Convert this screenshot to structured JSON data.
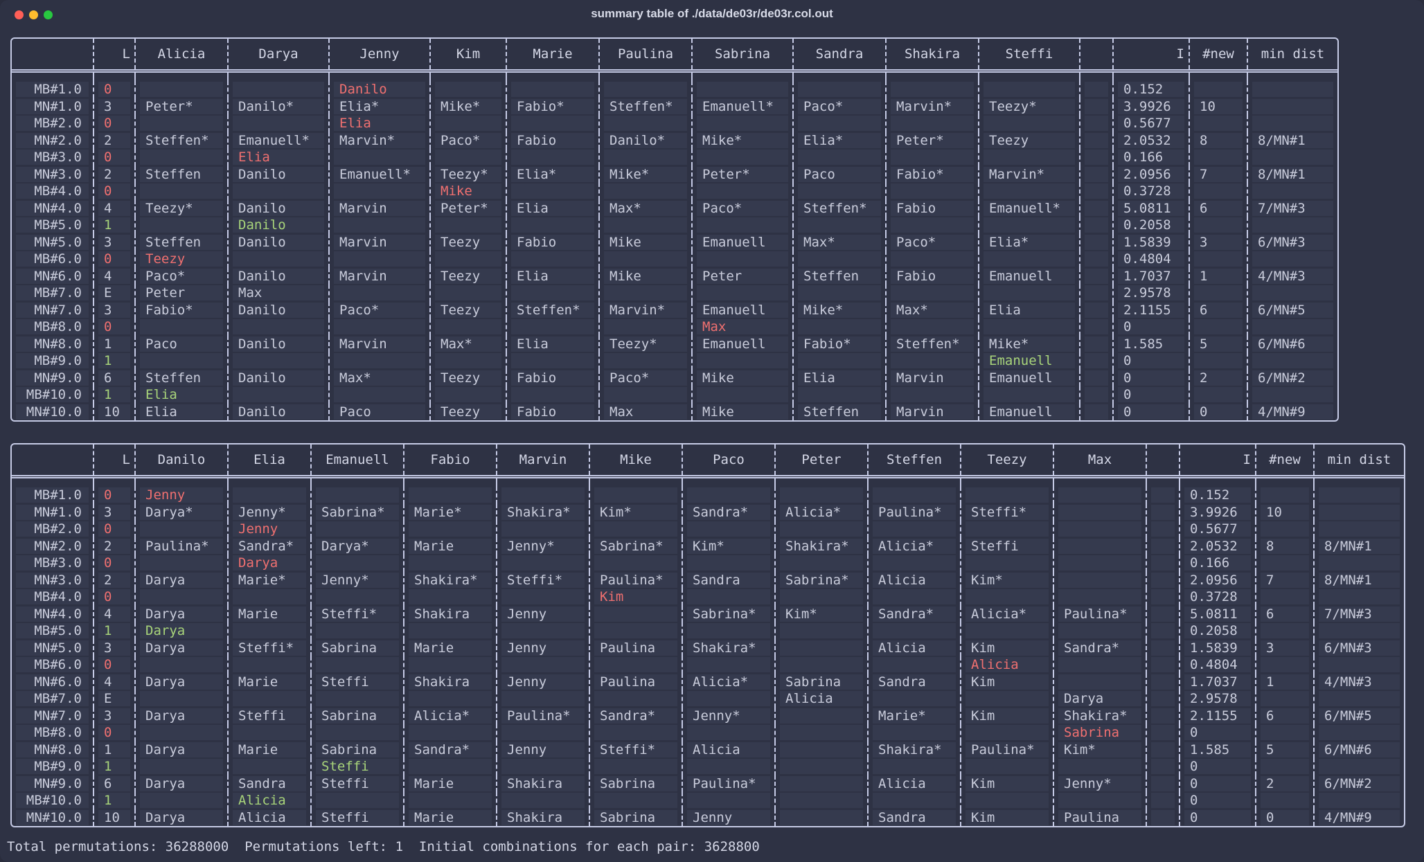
{
  "window": {
    "title": "summary table of ./data/de03r/de03r.col.out"
  },
  "table1": {
    "columns": [
      "",
      "L",
      "Alicia",
      "Darya",
      "Jenny",
      "Kim",
      "Marie",
      "Paulina",
      "Sabrina",
      "Sandra",
      "Shakira",
      "Steffi",
      "",
      "I",
      "#new",
      "min dist"
    ],
    "rows": [
      [
        "MB#1.0",
        "0",
        "",
        "",
        "Danilo",
        "",
        "",
        "",
        "",
        "",
        "",
        "",
        "",
        "0.152",
        "",
        ""
      ],
      [
        "MN#1.0",
        "3",
        "Peter*",
        "Danilo*",
        "Elia*",
        "Mike*",
        "Fabio*",
        "Steffen*",
        "Emanuell*",
        "Paco*",
        "Marvin*",
        "Teezy*",
        "",
        "3.9926",
        "10",
        ""
      ],
      [
        "MB#2.0",
        "0",
        "",
        "",
        "Elia",
        "",
        "",
        "",
        "",
        "",
        "",
        "",
        "",
        "0.5677",
        "",
        ""
      ],
      [
        "MN#2.0",
        "2",
        "Steffen*",
        "Emanuell*",
        "Marvin*",
        "Paco*",
        "Fabio",
        "Danilo*",
        "Mike*",
        "Elia*",
        "Peter*",
        "Teezy",
        "",
        "2.0532",
        "8",
        "8/MN#1"
      ],
      [
        "MB#3.0",
        "0",
        "",
        "Elia",
        "",
        "",
        "",
        "",
        "",
        "",
        "",
        "",
        "",
        "0.166",
        "",
        ""
      ],
      [
        "MN#3.0",
        "2",
        "Steffen",
        "Danilo",
        "Emanuell*",
        "Teezy*",
        "Elia*",
        "Mike*",
        "Peter*",
        "Paco",
        "Fabio*",
        "Marvin*",
        "",
        "2.0956",
        "7",
        "8/MN#1"
      ],
      [
        "MB#4.0",
        "0",
        "",
        "",
        "",
        "Mike",
        "",
        "",
        "",
        "",
        "",
        "",
        "",
        "0.3728",
        "",
        ""
      ],
      [
        "MN#4.0",
        "4",
        "Teezy*",
        "Danilo",
        "Marvin",
        "Peter*",
        "Elia",
        "Max*",
        "Paco*",
        "Steffen*",
        "Fabio",
        "Emanuell*",
        "",
        "5.0811",
        "6",
        "7/MN#3"
      ],
      [
        "MB#5.0",
        "1",
        "",
        "Danilo",
        "",
        "",
        "",
        "",
        "",
        "",
        "",
        "",
        "",
        "0.2058",
        "",
        ""
      ],
      [
        "MN#5.0",
        "3",
        "Steffen",
        "Danilo",
        "Marvin",
        "Teezy",
        "Fabio",
        "Mike",
        "Emanuell",
        "Max*",
        "Paco*",
        "Elia*",
        "",
        "1.5839",
        "3",
        "6/MN#3"
      ],
      [
        "MB#6.0",
        "0",
        "Teezy",
        "",
        "",
        "",
        "",
        "",
        "",
        "",
        "",
        "",
        "",
        "0.4804",
        "",
        ""
      ],
      [
        "MN#6.0",
        "4",
        "Paco*",
        "Danilo",
        "Marvin",
        "Teezy",
        "Elia",
        "Mike",
        "Peter",
        "Steffen",
        "Fabio",
        "Emanuell",
        "",
        "1.7037",
        "1",
        "4/MN#3"
      ],
      [
        "MB#7.0",
        "E",
        "Peter",
        "Max",
        "",
        "",
        "",
        "",
        "",
        "",
        "",
        "",
        "",
        "2.9578",
        "",
        ""
      ],
      [
        "MN#7.0",
        "3",
        "Fabio*",
        "Danilo",
        "Paco*",
        "Teezy",
        "Steffen*",
        "Marvin*",
        "Emanuell",
        "Mike*",
        "Max*",
        "Elia",
        "",
        "2.1155",
        "6",
        "6/MN#5"
      ],
      [
        "MB#8.0",
        "0",
        "",
        "",
        "",
        "",
        "",
        "",
        "Max",
        "",
        "",
        "",
        "",
        "0",
        "",
        ""
      ],
      [
        "MN#8.0",
        "1",
        "Paco",
        "Danilo",
        "Marvin",
        "Max*",
        "Elia",
        "Teezy*",
        "Emanuell",
        "Fabio*",
        "Steffen*",
        "Mike*",
        "",
        "1.585",
        "5",
        "6/MN#6"
      ],
      [
        "MB#9.0",
        "1",
        "",
        "",
        "",
        "",
        "",
        "",
        "",
        "",
        "",
        "Emanuell",
        "",
        "0",
        "",
        ""
      ],
      [
        "MN#9.0",
        "6",
        "Steffen",
        "Danilo",
        "Max*",
        "Teezy",
        "Fabio",
        "Paco*",
        "Mike",
        "Elia",
        "Marvin",
        "Emanuell",
        "",
        "0",
        "2",
        "6/MN#2"
      ],
      [
        "MB#10.0",
        "1",
        "Elia",
        "",
        "",
        "",
        "",
        "",
        "",
        "",
        "",
        "",
        "",
        "0",
        "",
        ""
      ],
      [
        "MN#10.0",
        "10",
        "Elia",
        "Danilo",
        "Paco",
        "Teezy",
        "Fabio",
        "Max",
        "Mike",
        "Steffen",
        "Marvin",
        "Emanuell",
        "",
        "0",
        "0",
        "4/MN#9"
      ]
    ],
    "colors": {
      "MB#1.0": {
        "4": "red"
      },
      "MB#2.0": {
        "4": "red"
      },
      "MB#3.0": {
        "3": "red"
      },
      "MB#4.0": {
        "5": "red"
      },
      "MB#5.0": {
        "3": "green"
      },
      "MB#6.0": {
        "2": "red"
      },
      "MB#8.0": {
        "8": "red"
      },
      "MB#9.0": {
        "11": "green"
      },
      "MB#10.0": {
        "2": "green"
      }
    }
  },
  "table2": {
    "columns": [
      "",
      "L",
      "Danilo",
      "Elia",
      "Emanuell",
      "Fabio",
      "Marvin",
      "Mike",
      "Paco",
      "Peter",
      "Steffen",
      "Teezy",
      "Max",
      "",
      "I",
      "#new",
      "min dist"
    ],
    "rows": [
      [
        "MB#1.0",
        "0",
        "Jenny",
        "",
        "",
        "",
        "",
        "",
        "",
        "",
        "",
        "",
        "",
        "",
        "0.152",
        "",
        ""
      ],
      [
        "MN#1.0",
        "3",
        "Darya*",
        "Jenny*",
        "Sabrina*",
        "Marie*",
        "Shakira*",
        "Kim*",
        "Sandra*",
        "Alicia*",
        "Paulina*",
        "Steffi*",
        "",
        "",
        "3.9926",
        "10",
        ""
      ],
      [
        "MB#2.0",
        "0",
        "",
        "Jenny",
        "",
        "",
        "",
        "",
        "",
        "",
        "",
        "",
        "",
        "",
        "0.5677",
        "",
        ""
      ],
      [
        "MN#2.0",
        "2",
        "Paulina*",
        "Sandra*",
        "Darya*",
        "Marie",
        "Jenny*",
        "Sabrina*",
        "Kim*",
        "Shakira*",
        "Alicia*",
        "Steffi",
        "",
        "",
        "2.0532",
        "8",
        "8/MN#1"
      ],
      [
        "MB#3.0",
        "0",
        "",
        "Darya",
        "",
        "",
        "",
        "",
        "",
        "",
        "",
        "",
        "",
        "",
        "0.166",
        "",
        ""
      ],
      [
        "MN#3.0",
        "2",
        "Darya",
        "Marie*",
        "Jenny*",
        "Shakira*",
        "Steffi*",
        "Paulina*",
        "Sandra",
        "Sabrina*",
        "Alicia",
        "Kim*",
        "",
        "",
        "2.0956",
        "7",
        "8/MN#1"
      ],
      [
        "MB#4.0",
        "0",
        "",
        "",
        "",
        "",
        "",
        "Kim",
        "",
        "",
        "",
        "",
        "",
        "",
        "0.3728",
        "",
        ""
      ],
      [
        "MN#4.0",
        "4",
        "Darya",
        "Marie",
        "Steffi*",
        "Shakira",
        "Jenny",
        "",
        "Sabrina*",
        "Kim*",
        "Sandra*",
        "Alicia*",
        "Paulina*",
        "",
        "5.0811",
        "6",
        "7/MN#3"
      ],
      [
        "MB#5.0",
        "1",
        "Darya",
        "",
        "",
        "",
        "",
        "",
        "",
        "",
        "",
        "",
        "",
        "",
        "0.2058",
        "",
        ""
      ],
      [
        "MN#5.0",
        "3",
        "Darya",
        "Steffi*",
        "Sabrina",
        "Marie",
        "Jenny",
        "Paulina",
        "Shakira*",
        "",
        "Alicia",
        "Kim",
        "Sandra*",
        "",
        "1.5839",
        "3",
        "6/MN#3"
      ],
      [
        "MB#6.0",
        "0",
        "",
        "",
        "",
        "",
        "",
        "",
        "",
        "",
        "",
        "Alicia",
        "",
        "",
        "0.4804",
        "",
        ""
      ],
      [
        "MN#6.0",
        "4",
        "Darya",
        "Marie",
        "Steffi",
        "Shakira",
        "Jenny",
        "Paulina",
        "Alicia*",
        "Sabrina",
        "Sandra",
        "Kim",
        "",
        "",
        "1.7037",
        "1",
        "4/MN#3"
      ],
      [
        "MB#7.0",
        "E",
        "",
        "",
        "",
        "",
        "",
        "",
        "",
        "Alicia",
        "",
        "",
        "Darya",
        "",
        "2.9578",
        "",
        ""
      ],
      [
        "MN#7.0",
        "3",
        "Darya",
        "Steffi",
        "Sabrina",
        "Alicia*",
        "Paulina*",
        "Sandra*",
        "Jenny*",
        "",
        "Marie*",
        "Kim",
        "Shakira*",
        "",
        "2.1155",
        "6",
        "6/MN#5"
      ],
      [
        "MB#8.0",
        "0",
        "",
        "",
        "",
        "",
        "",
        "",
        "",
        "",
        "",
        "",
        "Sabrina",
        "",
        "0",
        "",
        ""
      ],
      [
        "MN#8.0",
        "1",
        "Darya",
        "Marie",
        "Sabrina",
        "Sandra*",
        "Jenny",
        "Steffi*",
        "Alicia",
        "",
        "Shakira*",
        "Paulina*",
        "Kim*",
        "",
        "1.585",
        "5",
        "6/MN#6"
      ],
      [
        "MB#9.0",
        "1",
        "",
        "",
        "Steffi",
        "",
        "",
        "",
        "",
        "",
        "",
        "",
        "",
        "",
        "0",
        "",
        ""
      ],
      [
        "MN#9.0",
        "6",
        "Darya",
        "Sandra",
        "Steffi",
        "Marie",
        "Shakira",
        "Sabrina",
        "Paulina*",
        "",
        "Alicia",
        "Kim",
        "Jenny*",
        "",
        "0",
        "2",
        "6/MN#2"
      ],
      [
        "MB#10.0",
        "1",
        "",
        "Alicia",
        "",
        "",
        "",
        "",
        "",
        "",
        "",
        "",
        "",
        "",
        "0",
        "",
        ""
      ],
      [
        "MN#10.0",
        "10",
        "Darya",
        "Alicia",
        "Steffi",
        "Marie",
        "Shakira",
        "Sabrina",
        "Jenny",
        "",
        "Sandra",
        "Kim",
        "Paulina",
        "",
        "0",
        "0",
        "4/MN#9"
      ]
    ],
    "colors": {
      "MB#1.0": {
        "2": "red"
      },
      "MB#2.0": {
        "3": "red"
      },
      "MB#3.0": {
        "3": "red"
      },
      "MB#4.0": {
        "7": "red"
      },
      "MB#5.0": {
        "2": "green"
      },
      "MB#6.0": {
        "11": "red"
      },
      "MB#8.0": {
        "12": "red"
      },
      "MB#9.0": {
        "4": "green"
      },
      "MB#10.0": {
        "3": "green"
      }
    }
  },
  "status": {
    "total_label": "Total permutations:",
    "total_value": "36288000",
    "left_label": "Permutations left:",
    "left_value": "1",
    "initial_label": "Initial combinations for each pair:",
    "initial_value": "3628800"
  },
  "theme": {
    "l_zero_color": "#f07070",
    "l_one_color": "#a8d47a",
    "text_color": "#c9ccdb",
    "border_color": "#c6cbe6",
    "cell_bg": "#353a4e"
  }
}
